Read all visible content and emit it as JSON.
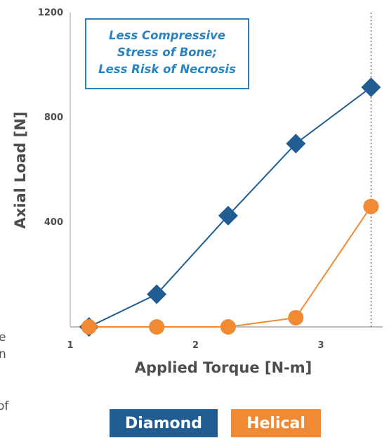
{
  "chart_data": {
    "type": "line",
    "xlabel": "Applied Torque  [N-m]",
    "ylabel": "Axial Load  [N]",
    "x_ticks": [
      "1",
      "2",
      "3"
    ],
    "y_ticks": [
      "400",
      "800",
      "1200"
    ],
    "xlim": [
      1,
      3.5
    ],
    "ylim": [
      0,
      1200
    ],
    "grid": false,
    "reference_line": {
      "x": 3.4,
      "style": "dotted"
    },
    "annotation": {
      "lines": [
        "Less Compressive",
        "Stress of Bone;",
        "Less Risk of Necrosis"
      ],
      "color": "#2a83c0"
    },
    "legend_placement": "bottom-center",
    "series": [
      {
        "name": "Diamond",
        "color": "#215d93",
        "marker": "diamond",
        "x": [
          1.15,
          1.69,
          2.26,
          2.8,
          3.4
        ],
        "y": [
          0,
          125,
          425,
          700,
          915
        ]
      },
      {
        "name": "Helical",
        "color": "#f08a34",
        "marker": "circle",
        "x": [
          1.15,
          1.69,
          2.26,
          2.8,
          3.4
        ],
        "y": [
          0,
          0,
          0,
          35,
          460
        ]
      }
    ]
  },
  "clipped_text": [
    "e",
    "n",
    "of"
  ]
}
